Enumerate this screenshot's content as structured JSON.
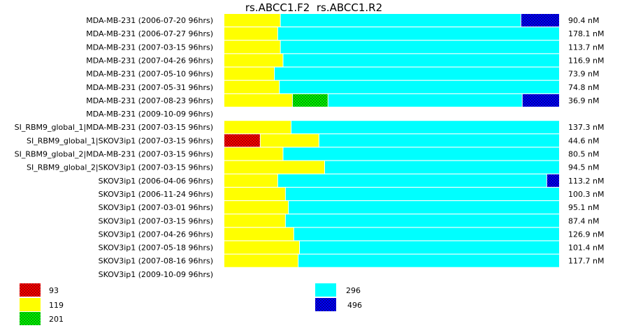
{
  "chart_data": {
    "type": "bar",
    "orientation": "horizontal",
    "stacked": "percent",
    "title": "rs.ABCC1.F2  rs.ABCC1.R2",
    "value_unit": "nM",
    "legend_placement": "bottom",
    "legend": [
      {
        "key": "93",
        "color": "#ff0000",
        "pattern": "checker"
      },
      {
        "key": "119",
        "color": "#ffff00",
        "pattern": "solid"
      },
      {
        "key": "201",
        "color": "#00ff00",
        "pattern": "checker"
      },
      {
        "key": "296",
        "color": "#00ffff",
        "pattern": "solid"
      },
      {
        "key": "496",
        "color": "#0000ff",
        "pattern": "checker"
      }
    ],
    "categories": [
      "MDA-MB-231 (2006-07-20 96hrs)",
      "MDA-MB-231 (2006-07-27 96hrs)",
      "MDA-MB-231 (2007-03-15 96hrs)",
      "MDA-MB-231 (2007-04-26 96hrs)",
      "MDA-MB-231 (2007-05-10 96hrs)",
      "MDA-MB-231 (2007-05-31 96hrs)",
      "MDA-MB-231 (2007-08-23 96hrs)",
      "MDA-MB-231 (2009-10-09 96hrs)",
      "SI_RBM9_global_1|MDA-MB-231 (2007-03-15 96hrs)",
      "SI_RBM9_global_1|SKOV3ip1 (2007-03-15 96hrs)",
      "SI_RBM9_global_2|MDA-MB-231 (2007-03-15 96hrs)",
      "SI_RBM9_global_2|SKOV3ip1 (2007-03-15 96hrs)",
      "SKOV3ip1 (2006-04-06 96hrs)",
      "SKOV3ip1 (2006-11-24 96hrs)",
      "SKOV3ip1 (2007-03-01 96hrs)",
      "SKOV3ip1 (2007-03-15 96hrs)",
      "SKOV3ip1 (2007-04-26 96hrs)",
      "SKOV3ip1 (2007-05-18 96hrs)",
      "SKOV3ip1 (2007-08-16 96hrs)",
      "SKOV3ip1 (2009-10-09 96hrs)"
    ],
    "rows": [
      {
        "total": "90.4 nM",
        "segments": [
          {
            "key": "119",
            "fraction": 0.168
          },
          {
            "key": "296",
            "fraction": 0.717
          },
          {
            "key": "496",
            "fraction": 0.115
          }
        ]
      },
      {
        "total": "178.1 nM",
        "segments": [
          {
            "key": "119",
            "fraction": 0.16
          },
          {
            "key": "296",
            "fraction": 0.84
          }
        ]
      },
      {
        "total": "113.7 nM",
        "segments": [
          {
            "key": "119",
            "fraction": 0.168
          },
          {
            "key": "296",
            "fraction": 0.832
          }
        ]
      },
      {
        "total": "116.9 nM",
        "segments": [
          {
            "key": "119",
            "fraction": 0.176
          },
          {
            "key": "296",
            "fraction": 0.824
          }
        ]
      },
      {
        "total": "73.9 nM",
        "segments": [
          {
            "key": "119",
            "fraction": 0.15
          },
          {
            "key": "296",
            "fraction": 0.85
          }
        ]
      },
      {
        "total": "74.8 nM",
        "segments": [
          {
            "key": "119",
            "fraction": 0.165
          },
          {
            "key": "296",
            "fraction": 0.835
          }
        ]
      },
      {
        "total": "36.9 nM",
        "segments": [
          {
            "key": "119",
            "fraction": 0.204
          },
          {
            "key": "201",
            "fraction": 0.106
          },
          {
            "key": "296",
            "fraction": 0.579
          },
          {
            "key": "496",
            "fraction": 0.111
          }
        ]
      },
      {
        "total": "",
        "segments": []
      },
      {
        "total": "137.3 nM",
        "segments": [
          {
            "key": "119",
            "fraction": 0.2
          },
          {
            "key": "296",
            "fraction": 0.8
          }
        ]
      },
      {
        "total": "44.6 nM",
        "segments": [
          {
            "key": "93",
            "fraction": 0.108
          },
          {
            "key": "119",
            "fraction": 0.175
          },
          {
            "key": "296",
            "fraction": 0.717
          }
        ]
      },
      {
        "total": "80.5 nM",
        "segments": [
          {
            "key": "119",
            "fraction": 0.176
          },
          {
            "key": "296",
            "fraction": 0.824
          }
        ]
      },
      {
        "total": "94.5 nM",
        "segments": [
          {
            "key": "119",
            "fraction": 0.3
          },
          {
            "key": "296",
            "fraction": 0.7
          }
        ]
      },
      {
        "total": "113.2 nM",
        "segments": [
          {
            "key": "119",
            "fraction": 0.16
          },
          {
            "key": "296",
            "fraction": 0.802
          },
          {
            "key": "496",
            "fraction": 0.038
          }
        ]
      },
      {
        "total": "100.3 nM",
        "segments": [
          {
            "key": "119",
            "fraction": 0.183
          },
          {
            "key": "296",
            "fraction": 0.817
          }
        ]
      },
      {
        "total": "95.1 nM",
        "segments": [
          {
            "key": "119",
            "fraction": 0.192
          },
          {
            "key": "296",
            "fraction": 0.808
          }
        ]
      },
      {
        "total": "87.4 nM",
        "segments": [
          {
            "key": "119",
            "fraction": 0.183
          },
          {
            "key": "296",
            "fraction": 0.817
          }
        ]
      },
      {
        "total": "126.9 nM",
        "segments": [
          {
            "key": "119",
            "fraction": 0.208
          },
          {
            "key": "296",
            "fraction": 0.792
          }
        ]
      },
      {
        "total": "101.4 nM",
        "segments": [
          {
            "key": "119",
            "fraction": 0.225
          },
          {
            "key": "296",
            "fraction": 0.775
          }
        ]
      },
      {
        "total": "117.7 nM",
        "segments": [
          {
            "key": "119",
            "fraction": 0.221
          },
          {
            "key": "296",
            "fraction": 0.779
          }
        ]
      },
      {
        "total": "",
        "segments": []
      }
    ]
  }
}
